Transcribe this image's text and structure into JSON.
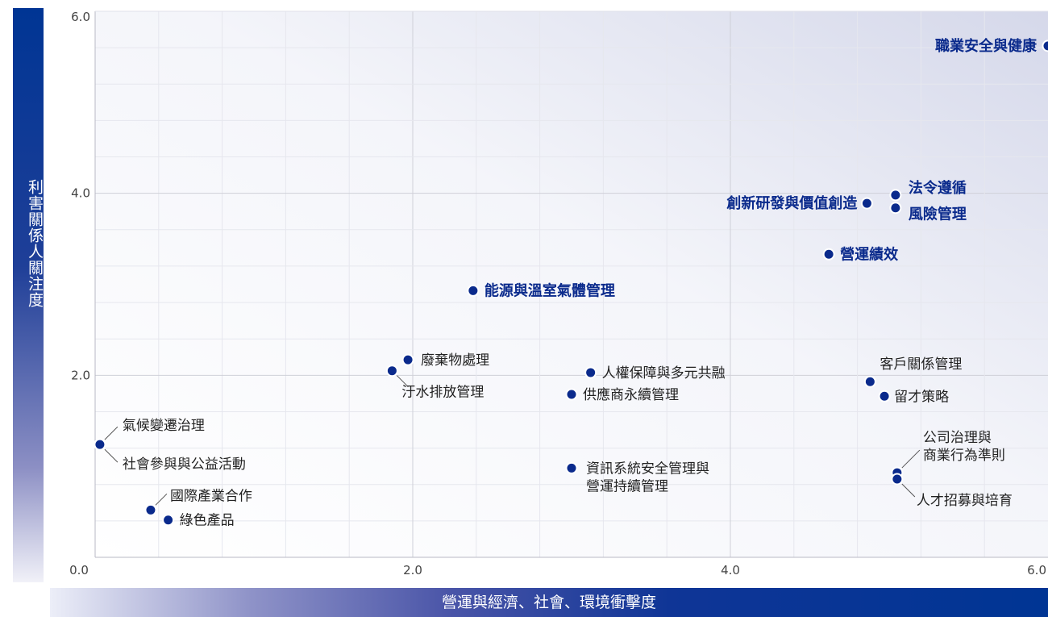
{
  "chart_data": {
    "type": "scatter",
    "title": "",
    "xlabel": "營運與經濟、社會、環境衝擊度",
    "ylabel": "利害關係人關注度",
    "xlim": [
      0,
      6
    ],
    "ylim": [
      0,
      6
    ],
    "x_ticks": [
      "0.0",
      "2.0",
      "4.0",
      "6.0"
    ],
    "y_ticks": [
      "0.0",
      "2.0",
      "4.0",
      "6.0"
    ],
    "grid": true,
    "point_color": "#0a2a8c",
    "points": [
      {
        "label": "職業安全與健康",
        "x": 6.0,
        "y": 5.62,
        "bold": true
      },
      {
        "label": "法令遵循",
        "x": 5.04,
        "y": 3.98,
        "bold": true
      },
      {
        "label": "風險管理",
        "x": 5.04,
        "y": 3.84,
        "bold": true
      },
      {
        "label": "創新研發與價值創造",
        "x": 4.86,
        "y": 3.89,
        "bold": true
      },
      {
        "label": "營運績效",
        "x": 4.62,
        "y": 3.33,
        "bold": true
      },
      {
        "label": "能源與溫室氣體管理",
        "x": 2.38,
        "y": 2.93,
        "bold": true
      },
      {
        "label": "廢棄物處理",
        "x": 1.97,
        "y": 2.17,
        "bold": false
      },
      {
        "label": "汙水排放管理",
        "x": 1.87,
        "y": 2.05,
        "bold": false
      },
      {
        "label": "人權保障與多元共融",
        "x": 3.12,
        "y": 2.03,
        "bold": false
      },
      {
        "label": "供應商永續管理",
        "x": 3.0,
        "y": 1.79,
        "bold": false
      },
      {
        "label": "客戶關係管理",
        "x": 4.88,
        "y": 1.93,
        "bold": false
      },
      {
        "label": "留才策略",
        "x": 4.97,
        "y": 1.77,
        "bold": false
      },
      {
        "label": "氣候變遷治理",
        "x": 0.03,
        "y": 1.24,
        "bold": false
      },
      {
        "label": "社會參與與公益活動",
        "x": 0.03,
        "y": 1.24,
        "bold": false
      },
      {
        "label": "國際產業合作",
        "x": 0.35,
        "y": 0.52,
        "bold": false
      },
      {
        "label": "綠色產品",
        "x": 0.46,
        "y": 0.41,
        "bold": false
      },
      {
        "label": "資訊系統安全管理與營運持續管理",
        "label_lines": [
          "資訊系統安全管理與",
          "營運持續管理"
        ],
        "x": 3.0,
        "y": 0.98,
        "bold": false
      },
      {
        "label": "公司治理與商業行為準則",
        "label_lines": [
          "公司治理與",
          "商業行為準則"
        ],
        "x": 5.05,
        "y": 0.93,
        "bold": false
      },
      {
        "label": "人才招募與培育",
        "x": 5.05,
        "y": 0.86,
        "bold": false
      }
    ]
  }
}
